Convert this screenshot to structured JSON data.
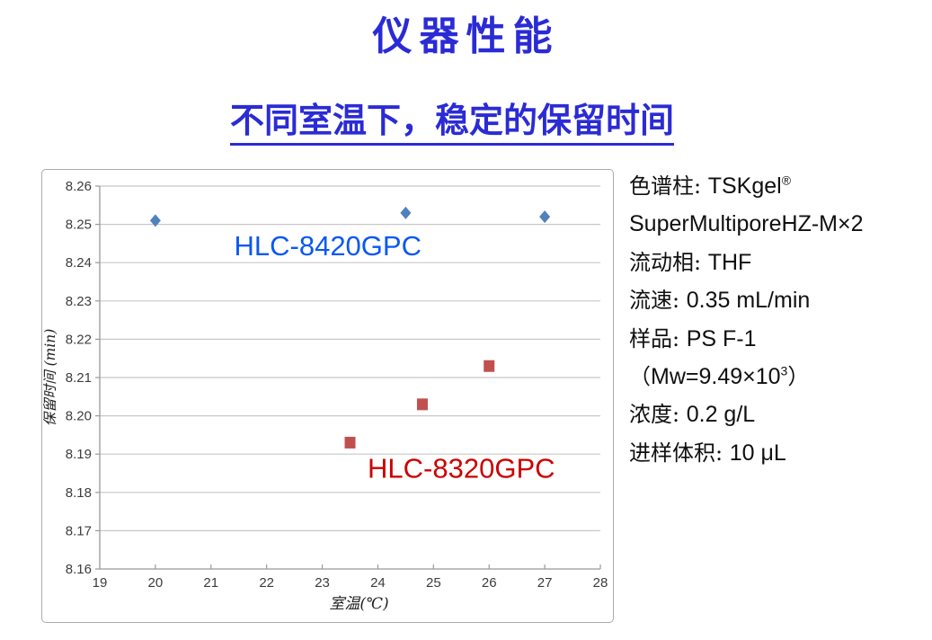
{
  "page": {
    "title": "仪器性能",
    "subtitle": "不同室温下，稳定的保留时间"
  },
  "colors": {
    "heading_blue": "#2B2BD5",
    "series1_marker": "#4F81BD",
    "series2_marker": "#C0504D",
    "series1_label": "#0A58F0",
    "series2_label": "#CC0000",
    "gridline": "#C8C8C8",
    "axis_line": "#999999",
    "tick_text": "#3C3C3C"
  },
  "chart_data": {
    "type": "scatter",
    "xlabel": "室温(℃)",
    "ylabel": "保留时间 (min)",
    "xlim": [
      19,
      28
    ],
    "xstep": 1,
    "ylim": [
      8.16,
      8.26
    ],
    "ystep": 0.01,
    "grid": "horizontal",
    "legend_position": "inside-annotations",
    "series": [
      {
        "name": "HLC-8420GPC",
        "marker": "diamond",
        "color": "#4F81BD",
        "label_color": "#0A58F0",
        "label_pos": [
          23.1,
          8.2443
        ],
        "points": [
          [
            20,
            8.251
          ],
          [
            24.5,
            8.253
          ],
          [
            27,
            8.252
          ]
        ]
      },
      {
        "name": "HLC-8320GPC",
        "marker": "square",
        "color": "#C0504D",
        "label_color": "#CC0000",
        "label_pos": [
          25.5,
          8.1862
        ],
        "points": [
          [
            23.5,
            8.193
          ],
          [
            24.8,
            8.203
          ],
          [
            26,
            8.213
          ]
        ]
      }
    ]
  },
  "specs": {
    "lines": [
      {
        "pre": "色谱柱: ",
        "main": "TSKgel",
        "sup": "®",
        "post": ""
      },
      {
        "pre": "",
        "main": "SuperMultiporeHZ-M×2",
        "sup": "",
        "post": ""
      },
      {
        "pre": "流动相: ",
        "main": "THF",
        "sup": "",
        "post": ""
      },
      {
        "pre": "流速: ",
        "main": "0.35 mL/min",
        "sup": "",
        "post": ""
      },
      {
        "pre": "样品: ",
        "main": "PS F-1",
        "sup": "",
        "post": ""
      },
      {
        "pre": "（",
        "main": "Mw=9.49×10",
        "sup": "3",
        "post": "）"
      },
      {
        "pre": "浓度: ",
        "main": "0.2 g/L",
        "sup": "",
        "post": ""
      },
      {
        "pre": "进样体积: ",
        "main": "10 μL",
        "sup": "",
        "post": ""
      }
    ]
  }
}
